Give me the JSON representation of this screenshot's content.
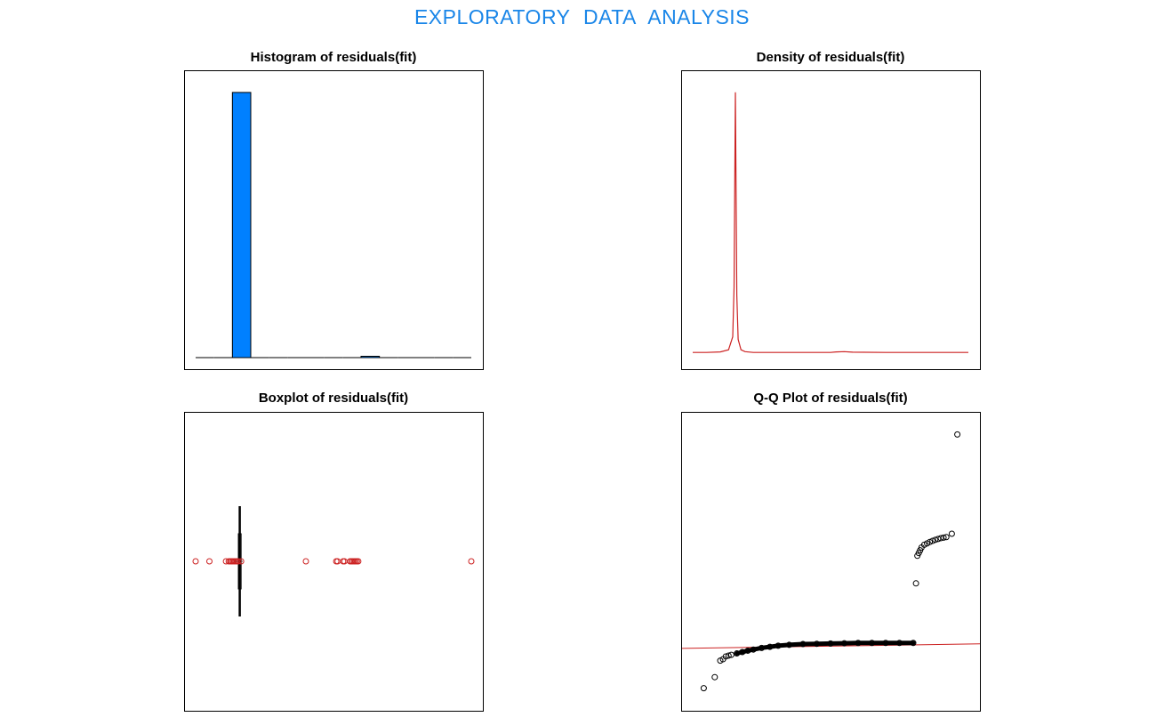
{
  "page": {
    "title": "EXPLORATORY  DATA  ANALYSIS",
    "title_color": "#1a86e8"
  },
  "colors": {
    "hist_fill": "#0080ff",
    "density_line": "#cc2222",
    "outlier": "#cc2222",
    "qq_line": "#cc2222",
    "box": "#000000",
    "points": "#000000"
  },
  "chart_data": [
    {
      "type": "bar",
      "title": "Histogram of residuals(fit)",
      "xlabel": "",
      "ylabel": "",
      "bins": 15,
      "values": [
        0,
        0,
        1,
        0,
        0,
        0,
        0,
        0,
        0.001,
        0.005,
        0,
        0,
        0,
        0,
        0
      ],
      "ylim": [
        0,
        1.04
      ]
    },
    {
      "type": "line",
      "title": "Density of residuals(fit)",
      "xlabel": "",
      "ylabel": "",
      "x": [
        0,
        0.05,
        0.1,
        0.13,
        0.145,
        0.15,
        0.155,
        0.16,
        0.165,
        0.175,
        0.19,
        0.22,
        0.3,
        0.5,
        0.52,
        0.55,
        0.58,
        0.7,
        0.85,
        1.0
      ],
      "y": [
        0,
        0,
        0.002,
        0.01,
        0.06,
        0.25,
        1.0,
        0.22,
        0.05,
        0.01,
        0.003,
        0,
        0,
        0,
        0.002,
        0.003,
        0.001,
        0,
        0,
        0
      ],
      "ylim": [
        -0.02,
        1.04
      ]
    },
    {
      "type": "scatter",
      "title": "Boxplot of residuals(fit)",
      "xlabel": "",
      "ylabel": "",
      "box": {
        "min": 0.14,
        "q1": 0.155,
        "median": 0.16,
        "q3": 0.165,
        "max": 0.17
      },
      "outliers": [
        0.0,
        0.05,
        0.11,
        0.12,
        0.125,
        0.13,
        0.135,
        0.14,
        0.145,
        0.15,
        0.155,
        0.165,
        0.4,
        0.51,
        0.515,
        0.535,
        0.54,
        0.56,
        0.565,
        0.57,
        0.575,
        0.58,
        0.585,
        0.59,
        1.0
      ]
    },
    {
      "type": "scatter",
      "title": "Q-Q Plot of residuals(fit)",
      "xlabel": "",
      "ylabel": "",
      "points": [
        [
          0.04,
          0.04
        ],
        [
          0.08,
          0.08
        ],
        [
          0.1,
          0.14
        ],
        [
          0.11,
          0.145
        ],
        [
          0.12,
          0.155
        ],
        [
          0.13,
          0.158
        ],
        [
          0.14,
          0.161
        ],
        [
          0.16,
          0.166
        ],
        [
          0.18,
          0.171
        ],
        [
          0.2,
          0.176
        ],
        [
          0.22,
          0.18
        ],
        [
          0.25,
          0.186
        ],
        [
          0.28,
          0.19
        ],
        [
          0.31,
          0.194
        ],
        [
          0.35,
          0.197
        ],
        [
          0.4,
          0.2
        ],
        [
          0.45,
          0.201
        ],
        [
          0.5,
          0.202
        ],
        [
          0.55,
          0.203
        ],
        [
          0.6,
          0.204
        ],
        [
          0.65,
          0.204
        ],
        [
          0.7,
          0.204
        ],
        [
          0.75,
          0.204
        ],
        [
          0.8,
          0.204
        ],
        [
          0.81,
          0.42
        ],
        [
          0.815,
          0.52
        ],
        [
          0.82,
          0.53
        ],
        [
          0.825,
          0.54
        ],
        [
          0.83,
          0.55
        ],
        [
          0.84,
          0.56
        ],
        [
          0.85,
          0.565
        ],
        [
          0.86,
          0.57
        ],
        [
          0.87,
          0.574
        ],
        [
          0.88,
          0.578
        ],
        [
          0.89,
          0.581
        ],
        [
          0.9,
          0.584
        ],
        [
          0.91,
          0.586
        ],
        [
          0.92,
          0.588
        ],
        [
          0.94,
          0.6
        ],
        [
          0.96,
          0.96
        ]
      ],
      "reference_line": {
        "x": [
          0,
          1
        ],
        "y": [
          0.185,
          0.2
        ]
      }
    }
  ]
}
